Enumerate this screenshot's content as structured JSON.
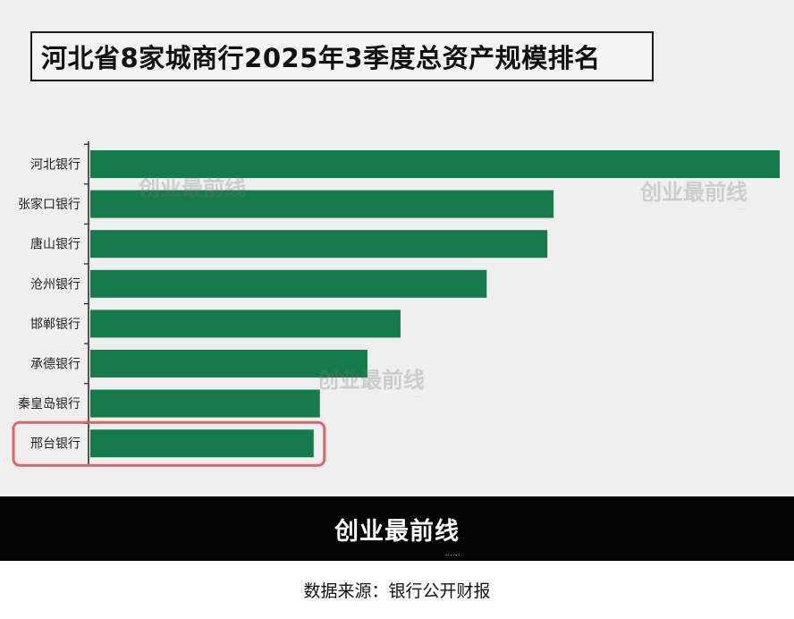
{
  "page": {
    "title": "河北省8家城商行2025年3季度总资产规模排名",
    "watermark_text": "创业最前线",
    "footer_logo": "创业最前线",
    "source": "数据来源：银行公开财报"
  },
  "chart_data": {
    "type": "bar",
    "orientation": "horizontal",
    "title": "河北省8家城商行2025年3季度总资产规模排名",
    "categories": [
      "河北银行",
      "张家口银行",
      "唐山银行",
      "沧州银行",
      "邯郸银行",
      "承德银行",
      "秦皇岛银行",
      "邢台银行"
    ],
    "values": [
      100,
      67.2,
      66.3,
      57.5,
      45.0,
      40.2,
      33.3,
      32.4
    ],
    "value_unit": "relative (河北银行 = 100)",
    "highlight": "邢台银行",
    "bar_color": "#157a4c",
    "highlight_border_color": "#e4606e",
    "axis_color": "#222222",
    "xlabel": "",
    "ylabel": "",
    "grid": false,
    "legend": "none"
  }
}
